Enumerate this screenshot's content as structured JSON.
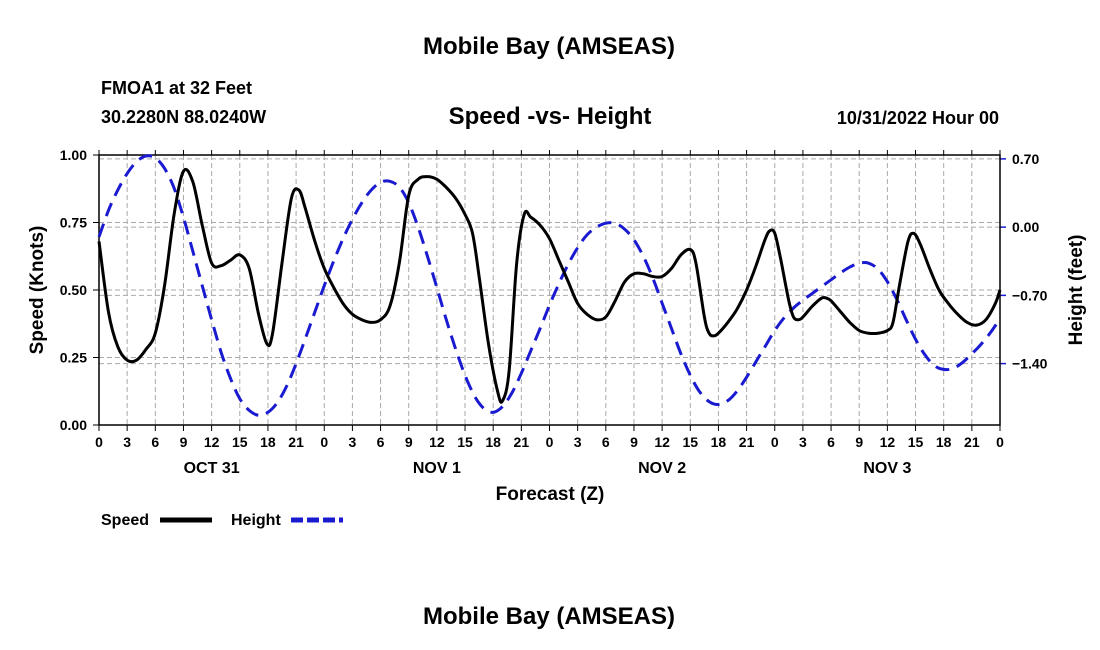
{
  "chart_data": {
    "type": "line",
    "title": "Mobile Bay (AMSEAS)",
    "station": "FMOA1 at 32 Feet",
    "location": "30.2280N  88.0240W",
    "subtitle": "Speed -vs- Height",
    "datetime": "10/31/2022 Hour 00",
    "xlabel": "Forecast (Z)",
    "ylabel_left": "Speed (Knots)",
    "ylabel_right": "Height (feet)",
    "x_range_hours": [
      0,
      96
    ],
    "ylim_left": [
      0,
      1
    ],
    "ylim_right": [
      -2.03,
      0.74
    ],
    "x_ticks": [
      {
        "hour": 0,
        "label": "0"
      },
      {
        "hour": 3,
        "label": "3"
      },
      {
        "hour": 6,
        "label": "6"
      },
      {
        "hour": 9,
        "label": "9"
      },
      {
        "hour": 12,
        "label": "12"
      },
      {
        "hour": 15,
        "label": "15"
      },
      {
        "hour": 18,
        "label": "18"
      },
      {
        "hour": 21,
        "label": "21"
      },
      {
        "hour": 24,
        "label": "0"
      },
      {
        "hour": 27,
        "label": "3"
      },
      {
        "hour": 30,
        "label": "6"
      },
      {
        "hour": 33,
        "label": "9"
      },
      {
        "hour": 36,
        "label": "12"
      },
      {
        "hour": 39,
        "label": "15"
      },
      {
        "hour": 42,
        "label": "18"
      },
      {
        "hour": 45,
        "label": "21"
      },
      {
        "hour": 48,
        "label": "0"
      },
      {
        "hour": 51,
        "label": "3"
      },
      {
        "hour": 54,
        "label": "6"
      },
      {
        "hour": 57,
        "label": "9"
      },
      {
        "hour": 60,
        "label": "12"
      },
      {
        "hour": 63,
        "label": "15"
      },
      {
        "hour": 66,
        "label": "18"
      },
      {
        "hour": 69,
        "label": "21"
      },
      {
        "hour": 72,
        "label": "0"
      },
      {
        "hour": 75,
        "label": "3"
      },
      {
        "hour": 78,
        "label": "6"
      },
      {
        "hour": 81,
        "label": "9"
      },
      {
        "hour": 84,
        "label": "12"
      },
      {
        "hour": 87,
        "label": "15"
      },
      {
        "hour": 90,
        "label": "18"
      },
      {
        "hour": 93,
        "label": "21"
      },
      {
        "hour": 96,
        "label": "0"
      }
    ],
    "day_labels": [
      {
        "hour": 12,
        "label": "OCT 31"
      },
      {
        "hour": 36,
        "label": "NOV 1"
      },
      {
        "hour": 60,
        "label": "NOV 2"
      },
      {
        "hour": 84,
        "label": "NOV 3"
      }
    ],
    "y_ticks_left": [
      {
        "value": 1.0,
        "label": "1.00"
      },
      {
        "value": 0.75,
        "label": "0.75"
      },
      {
        "value": 0.5,
        "label": "0.50"
      },
      {
        "value": 0.25,
        "label": "0.25"
      },
      {
        "value": 0.0,
        "label": "0.00"
      }
    ],
    "y_ticks_right": [
      {
        "value": 0.7,
        "label": "0.70"
      },
      {
        "value": 0.0,
        "label": "0.00"
      },
      {
        "value": -0.7,
        "label": "−0.70"
      },
      {
        "value": -1.4,
        "label": "−1.40"
      }
    ],
    "legend": [
      {
        "label": "Speed",
        "color": "#000000",
        "dash": "solid"
      },
      {
        "label": "Height",
        "color": "#1a1ad0",
        "dash": "dashed"
      }
    ],
    "footer_title": "Mobile Bay (AMSEAS)",
    "series": [
      {
        "name": "Speed",
        "axis": "left",
        "color": "#000000",
        "points": [
          [
            0,
            0.68
          ],
          [
            1,
            0.42
          ],
          [
            2,
            0.29
          ],
          [
            3,
            0.24
          ],
          [
            4,
            0.24
          ],
          [
            5,
            0.28
          ],
          [
            6,
            0.34
          ],
          [
            7,
            0.52
          ],
          [
            8,
            0.78
          ],
          [
            9,
            0.94
          ],
          [
            10,
            0.9
          ],
          [
            11,
            0.74
          ],
          [
            12,
            0.6
          ],
          [
            13,
            0.59
          ],
          [
            14,
            0.61
          ],
          [
            15,
            0.63
          ],
          [
            16,
            0.58
          ],
          [
            17,
            0.41
          ],
          [
            17.9,
            0.3
          ],
          [
            18.5,
            0.34
          ],
          [
            19.5,
            0.6
          ],
          [
            20.5,
            0.84
          ],
          [
            21.3,
            0.87
          ],
          [
            22,
            0.8
          ],
          [
            23,
            0.68
          ],
          [
            24,
            0.58
          ],
          [
            25,
            0.51
          ],
          [
            26,
            0.45
          ],
          [
            27,
            0.41
          ],
          [
            28,
            0.39
          ],
          [
            29,
            0.38
          ],
          [
            30,
            0.39
          ],
          [
            31,
            0.44
          ],
          [
            32,
            0.6
          ],
          [
            33,
            0.85
          ],
          [
            34,
            0.91
          ],
          [
            35,
            0.92
          ],
          [
            36,
            0.91
          ],
          [
            37,
            0.88
          ],
          [
            38,
            0.84
          ],
          [
            39,
            0.78
          ],
          [
            39.8,
            0.71
          ],
          [
            40.5,
            0.55
          ],
          [
            41.5,
            0.3
          ],
          [
            42.5,
            0.12
          ],
          [
            43,
            0.09
          ],
          [
            43.7,
            0.2
          ],
          [
            44.5,
            0.6
          ],
          [
            45.3,
            0.78
          ],
          [
            46,
            0.77
          ],
          [
            47,
            0.74
          ],
          [
            48,
            0.69
          ],
          [
            49,
            0.61
          ],
          [
            50,
            0.53
          ],
          [
            51,
            0.45
          ],
          [
            52,
            0.41
          ],
          [
            53,
            0.39
          ],
          [
            54,
            0.4
          ],
          [
            55,
            0.46
          ],
          [
            56,
            0.53
          ],
          [
            57,
            0.56
          ],
          [
            58,
            0.56
          ],
          [
            59,
            0.55
          ],
          [
            60,
            0.55
          ],
          [
            61,
            0.58
          ],
          [
            62,
            0.63
          ],
          [
            63,
            0.65
          ],
          [
            63.6,
            0.6
          ],
          [
            64.5,
            0.4
          ],
          [
            65,
            0.34
          ],
          [
            65.5,
            0.33
          ],
          [
            66,
            0.34
          ],
          [
            67,
            0.38
          ],
          [
            68,
            0.43
          ],
          [
            69,
            0.5
          ],
          [
            70,
            0.59
          ],
          [
            71,
            0.69
          ],
          [
            71.5,
            0.72
          ],
          [
            72,
            0.71
          ],
          [
            72.6,
            0.62
          ],
          [
            73.5,
            0.46
          ],
          [
            74,
            0.4
          ],
          [
            74.5,
            0.39
          ],
          [
            75,
            0.4
          ],
          [
            76,
            0.44
          ],
          [
            77,
            0.47
          ],
          [
            77.5,
            0.47
          ],
          [
            78,
            0.46
          ],
          [
            79,
            0.42
          ],
          [
            80,
            0.38
          ],
          [
            81,
            0.35
          ],
          [
            82,
            0.34
          ],
          [
            83,
            0.34
          ],
          [
            84,
            0.35
          ],
          [
            84.6,
            0.38
          ],
          [
            85.3,
            0.52
          ],
          [
            86.2,
            0.68
          ],
          [
            86.8,
            0.71
          ],
          [
            87.5,
            0.67
          ],
          [
            88.5,
            0.58
          ],
          [
            89.5,
            0.5
          ],
          [
            90.5,
            0.45
          ],
          [
            91.5,
            0.41
          ],
          [
            92.5,
            0.38
          ],
          [
            93.5,
            0.37
          ],
          [
            94.5,
            0.39
          ],
          [
            95.5,
            0.45
          ],
          [
            96,
            0.5
          ]
        ]
      },
      {
        "name": "Height",
        "axis": "right",
        "color": "#1a1ad0",
        "points": [
          [
            0,
            -0.1
          ],
          [
            1,
            0.17
          ],
          [
            2,
            0.38
          ],
          [
            3,
            0.55
          ],
          [
            4,
            0.67
          ],
          [
            5,
            0.73
          ],
          [
            6,
            0.71
          ],
          [
            7,
            0.6
          ],
          [
            8,
            0.4
          ],
          [
            9,
            0.1
          ],
          [
            10,
            -0.25
          ],
          [
            11,
            -0.6
          ],
          [
            12,
            -0.95
          ],
          [
            13,
            -1.28
          ],
          [
            14,
            -1.55
          ],
          [
            15,
            -1.76
          ],
          [
            16,
            -1.88
          ],
          [
            17,
            -1.93
          ],
          [
            18,
            -1.9
          ],
          [
            19,
            -1.8
          ],
          [
            20,
            -1.63
          ],
          [
            21,
            -1.4
          ],
          [
            22,
            -1.14
          ],
          [
            23,
            -0.87
          ],
          [
            24,
            -0.6
          ],
          [
            25,
            -0.35
          ],
          [
            26,
            -0.12
          ],
          [
            27,
            0.08
          ],
          [
            28,
            0.25
          ],
          [
            29,
            0.38
          ],
          [
            30,
            0.46
          ],
          [
            31,
            0.47
          ],
          [
            32,
            0.41
          ],
          [
            33,
            0.25
          ],
          [
            34,
            0.0
          ],
          [
            35,
            -0.3
          ],
          [
            36,
            -0.62
          ],
          [
            37,
            -0.95
          ],
          [
            38,
            -1.25
          ],
          [
            39,
            -1.52
          ],
          [
            40,
            -1.73
          ],
          [
            41,
            -1.86
          ],
          [
            42,
            -1.9
          ],
          [
            43,
            -1.84
          ],
          [
            44,
            -1.7
          ],
          [
            45,
            -1.5
          ],
          [
            46,
            -1.27
          ],
          [
            47,
            -1.04
          ],
          [
            48,
            -0.8
          ],
          [
            49,
            -0.58
          ],
          [
            50,
            -0.38
          ],
          [
            51,
            -0.21
          ],
          [
            52,
            -0.08
          ],
          [
            53,
            0.0
          ],
          [
            54,
            0.04
          ],
          [
            55,
            0.04
          ],
          [
            56,
            -0.02
          ],
          [
            57,
            -0.13
          ],
          [
            58,
            -0.3
          ],
          [
            59,
            -0.52
          ],
          [
            60,
            -0.78
          ],
          [
            61,
            -1.04
          ],
          [
            62,
            -1.3
          ],
          [
            63,
            -1.52
          ],
          [
            64,
            -1.69
          ],
          [
            65,
            -1.79
          ],
          [
            66,
            -1.82
          ],
          [
            67,
            -1.78
          ],
          [
            68,
            -1.68
          ],
          [
            69,
            -1.54
          ],
          [
            70,
            -1.38
          ],
          [
            71,
            -1.22
          ],
          [
            72,
            -1.06
          ],
          [
            73,
            -0.93
          ],
          [
            74,
            -0.83
          ],
          [
            75,
            -0.75
          ],
          [
            76,
            -0.68
          ],
          [
            77,
            -0.61
          ],
          [
            78,
            -0.54
          ],
          [
            79,
            -0.47
          ],
          [
            80,
            -0.41
          ],
          [
            81,
            -0.37
          ],
          [
            82,
            -0.37
          ],
          [
            83,
            -0.43
          ],
          [
            84,
            -0.56
          ],
          [
            85,
            -0.74
          ],
          [
            86,
            -0.95
          ],
          [
            87,
            -1.15
          ],
          [
            88,
            -1.31
          ],
          [
            89,
            -1.42
          ],
          [
            90,
            -1.46
          ],
          [
            91,
            -1.45
          ],
          [
            92,
            -1.39
          ],
          [
            93,
            -1.3
          ],
          [
            94,
            -1.2
          ],
          [
            95,
            -1.08
          ],
          [
            96,
            -0.94
          ]
        ]
      }
    ]
  }
}
